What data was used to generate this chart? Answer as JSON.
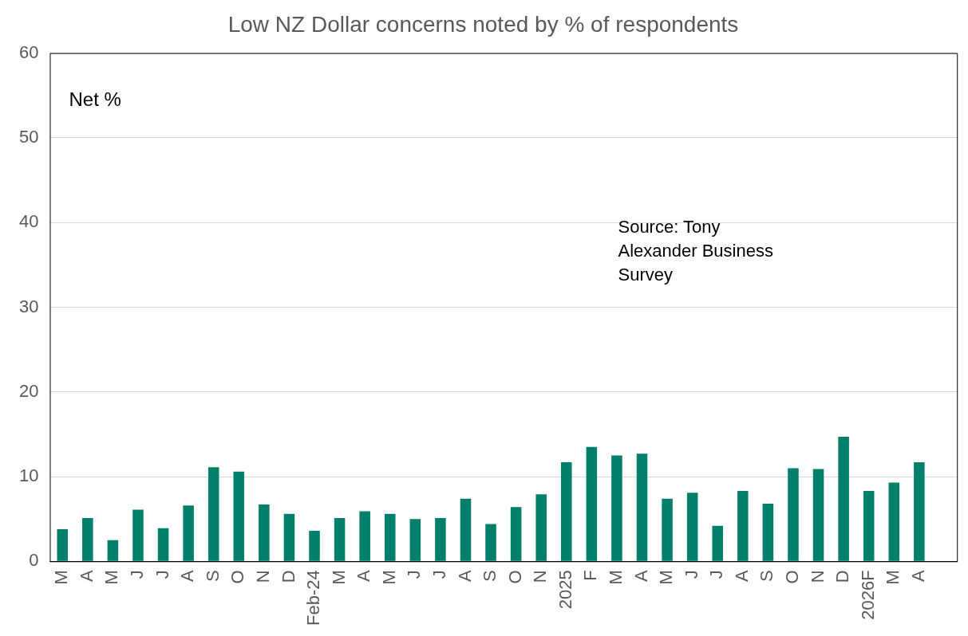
{
  "chart_data": {
    "type": "bar",
    "title": "Low NZ Dollar concerns noted by % of respondents",
    "categories": [
      "M",
      "A",
      "M",
      "J",
      "J",
      "A",
      "S",
      "O",
      "N",
      "D",
      "Feb-24",
      "M",
      "A",
      "M",
      "J",
      "J",
      "A",
      "S",
      "O",
      "N",
      "2025",
      "F",
      "M",
      "A",
      "M",
      "J",
      "J",
      "A",
      "S",
      "O",
      "N",
      "D",
      "2026F",
      "M",
      "A",
      null
    ],
    "series": [
      {
        "color": "#00806a",
        "values": [
          3.8,
          5.1,
          2.5,
          6.1,
          3.9,
          6.6,
          11.1,
          10.6,
          6.7,
          5.6,
          3.6,
          5.1,
          5.9,
          5.6,
          5.0,
          5.1,
          7.4,
          4.4,
          6.4,
          7.9,
          11.7,
          13.5,
          12.5,
          12.7,
          7.4,
          8.1,
          4.2,
          8.3,
          6.8,
          11.0,
          10.9,
          14.7,
          8.3,
          9.3,
          11.7,
          null
        ]
      }
    ],
    "ylim": [
      0,
      60
    ],
    "yticks": [
      0,
      10,
      20,
      30,
      40,
      50,
      60
    ],
    "grid": "y",
    "legend": false,
    "annotations": [
      "Net %",
      "Source: Tony Alexander Business Survey"
    ]
  }
}
